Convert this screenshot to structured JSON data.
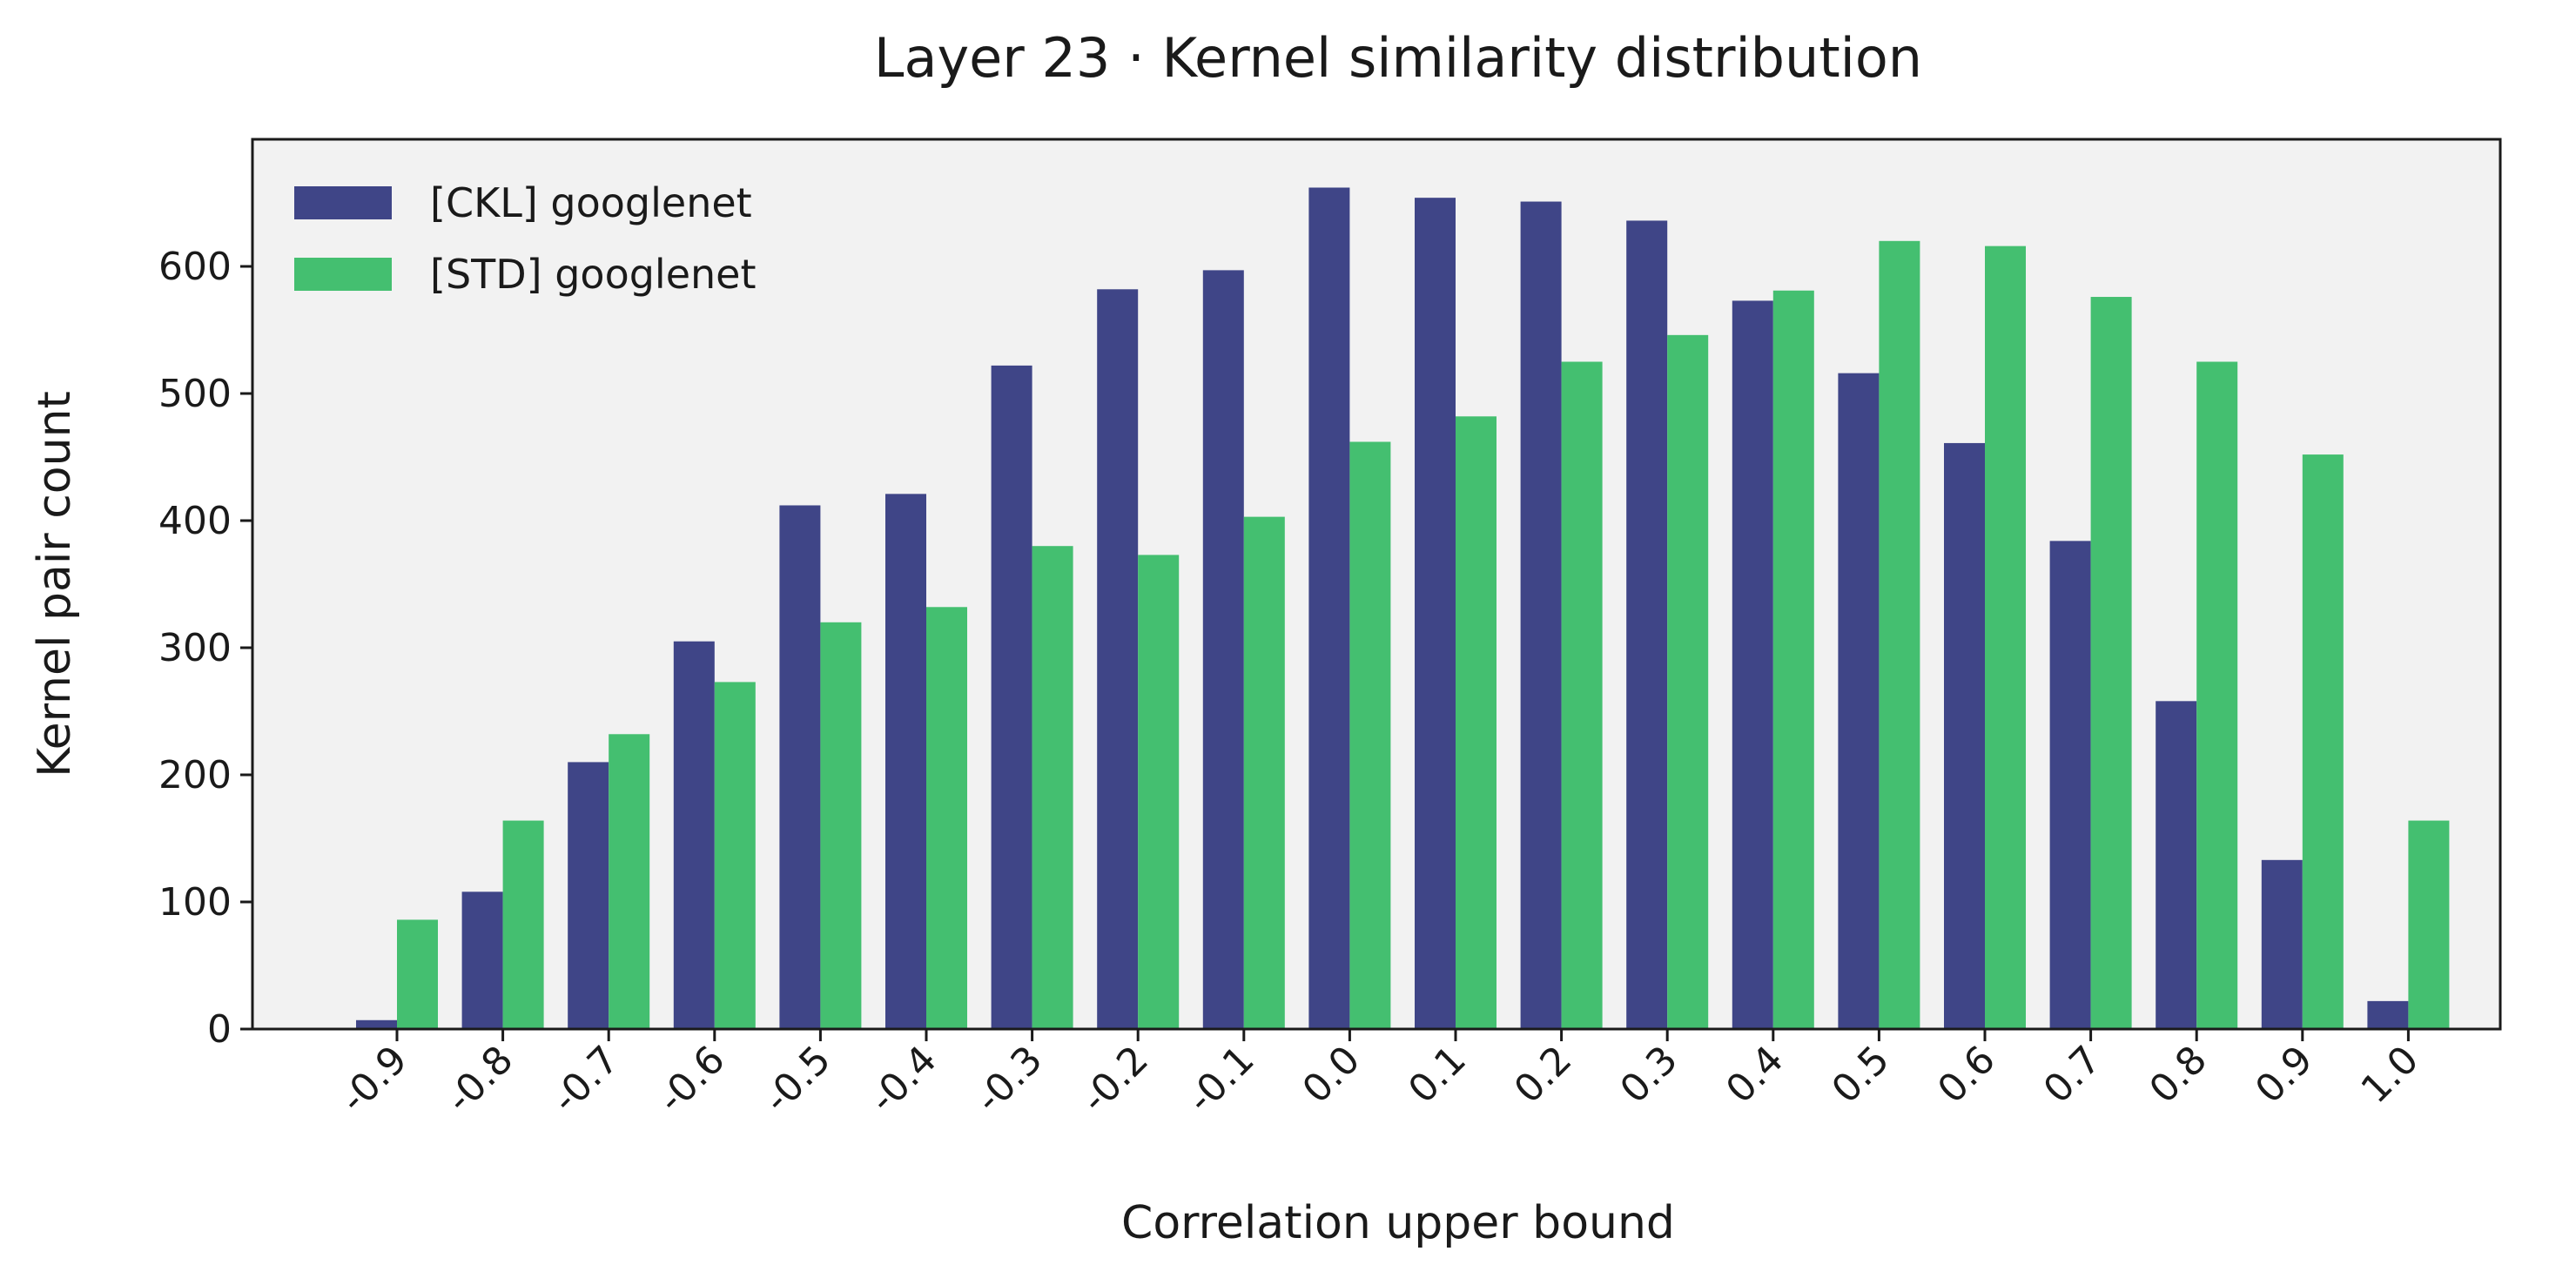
{
  "chart_data": {
    "type": "bar",
    "title": "Layer 23 · Kernel similarity distribution",
    "xlabel": "Correlation upper bound",
    "ylabel": "Kernel pair count",
    "categories": [
      "-0.9",
      "-0.8",
      "-0.7",
      "-0.6",
      "-0.5",
      "-0.4",
      "-0.3",
      "-0.2",
      "-0.1",
      "0.0",
      "0.1",
      "0.2",
      "0.3",
      "0.4",
      "0.5",
      "0.6",
      "0.7",
      "0.8",
      "0.9",
      "1.0"
    ],
    "yticks": [
      "0",
      "100",
      "200",
      "300",
      "400",
      "500",
      "600"
    ],
    "ylim": [
      0,
      700
    ],
    "grid": false,
    "legend_position": "top-left",
    "series": [
      {
        "name": "[CKL] googlenet",
        "color": "#3f4587",
        "values": [
          7,
          108,
          210,
          305,
          412,
          421,
          522,
          582,
          597,
          662,
          654,
          651,
          636,
          573,
          516,
          461,
          384,
          258,
          133,
          22
        ]
      },
      {
        "name": "[STD] googlenet",
        "color": "#44bf70",
        "values": [
          86,
          164,
          232,
          273,
          320,
          332,
          380,
          373,
          403,
          462,
          482,
          525,
          546,
          581,
          620,
          616,
          576,
          525,
          452,
          164
        ]
      }
    ],
    "background_color": "#f2f2f2"
  }
}
